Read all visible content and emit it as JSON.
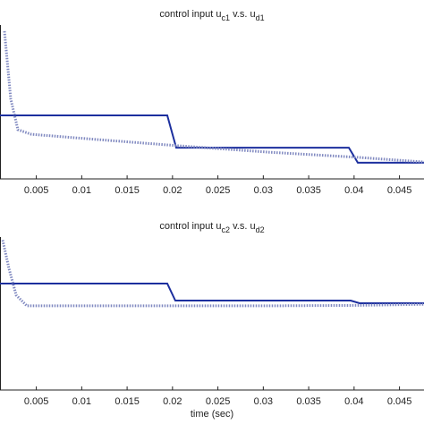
{
  "chart_data": [
    {
      "type": "line",
      "title": [
        "control input u",
        "c1",
        " v.s. u",
        "d1"
      ],
      "xlim": [
        0.001,
        0.0477
      ],
      "xticks": [
        0.005,
        0.01,
        0.015,
        0.02,
        0.025,
        0.03,
        0.035,
        0.04,
        0.045
      ],
      "ylim": [
        0,
        1
      ],
      "series": [
        {
          "color": "#1c2f9e",
          "dash": false,
          "x": [
            0.001,
            0.01942,
            0.02041,
            0.03942,
            0.04041,
            0.0477
          ],
          "values": [
            0.413,
            0.413,
            0.203,
            0.203,
            0.105,
            0.105
          ]
        },
        {
          "color": "#8089c0",
          "dash": true,
          "x": [
            0.00149,
            0.00218,
            0.00297,
            0.00445,
            0.01085,
            0.0207,
            0.03056,
            0.0404,
            0.0477
          ],
          "values": [
            0.96,
            0.52,
            0.32,
            0.29,
            0.26,
            0.215,
            0.174,
            0.14,
            0.11
          ]
        }
      ]
    },
    {
      "type": "line",
      "title": [
        "control input u",
        "c2",
        " v.s. u",
        "d2"
      ],
      "xlabel": "time (sec)",
      "xlim": [
        0.001,
        0.0477
      ],
      "xticks": [
        0.005,
        0.01,
        0.015,
        0.02,
        0.025,
        0.03,
        0.035,
        0.04,
        0.045
      ],
      "ylim": [
        0,
        1
      ],
      "series": [
        {
          "color": "#1c2f9e",
          "dash": false,
          "x": [
            0.001,
            0.01942,
            0.02031,
            0.03962,
            0.04061,
            0.0477
          ],
          "values": [
            0.696,
            0.696,
            0.585,
            0.585,
            0.567,
            0.567
          ]
        },
        {
          "color": "#8089c0",
          "dash": true,
          "x": [
            0.0013,
            0.00199,
            0.00278,
            0.00396,
            0.01085,
            0.0207,
            0.03056,
            0.0404,
            0.0477
          ],
          "values": [
            0.98,
            0.795,
            0.62,
            0.55,
            0.55,
            0.55,
            0.55,
            0.553,
            0.56
          ]
        }
      ]
    }
  ]
}
